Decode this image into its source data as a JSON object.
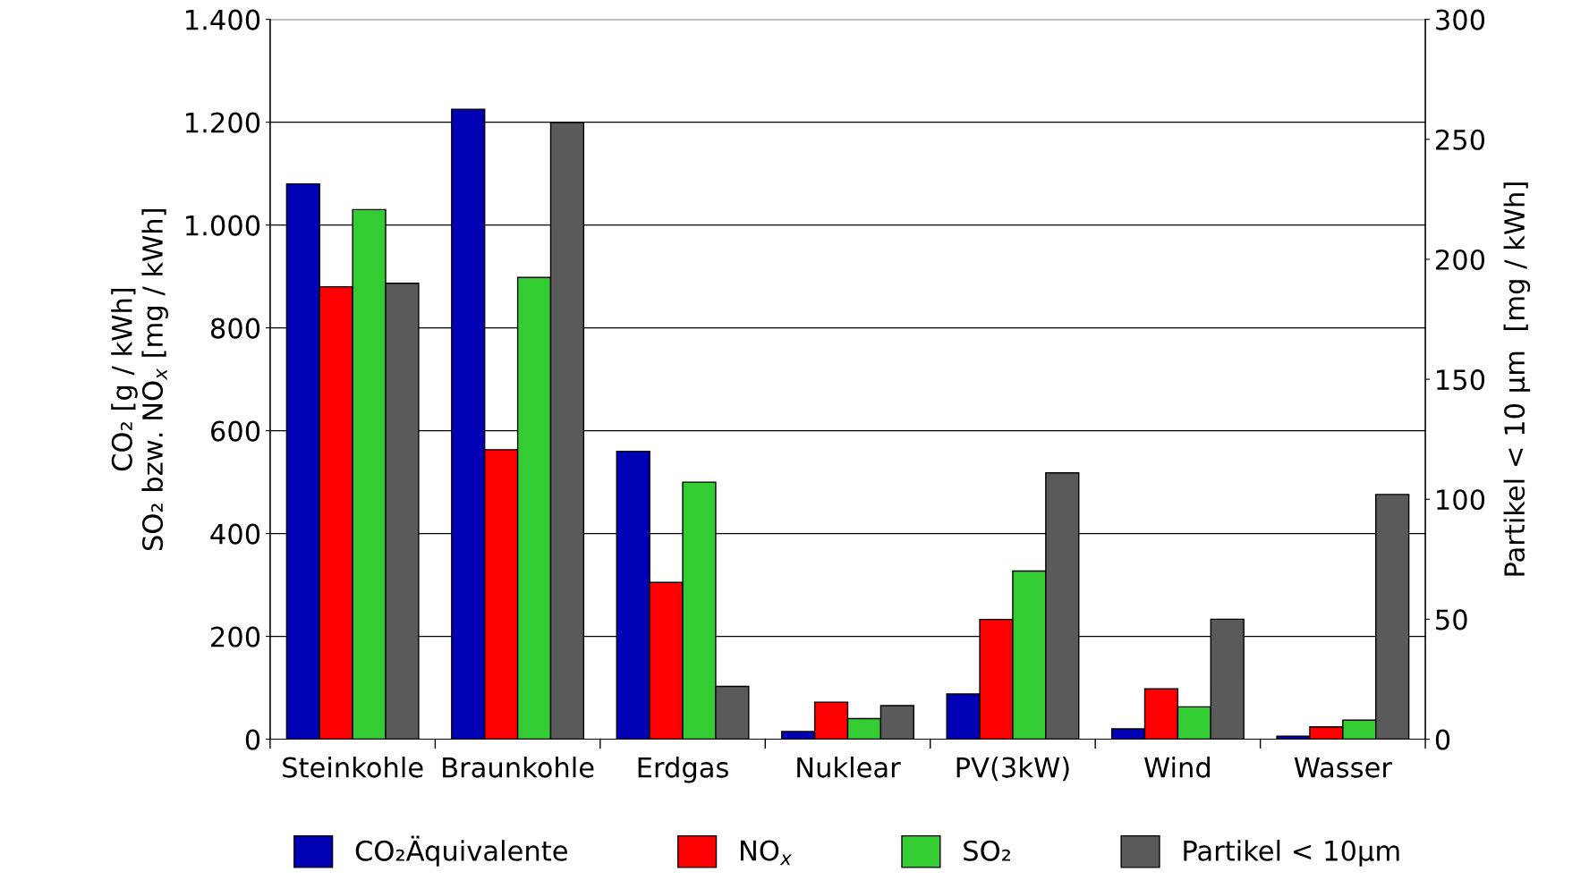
{
  "chart_data": {
    "type": "bar",
    "categories": [
      "Steinkohle",
      "Braunkohle",
      "Erdgas",
      "Nuklear",
      "PV(3kW)",
      "Wind",
      "Wasser"
    ],
    "series": [
      {
        "name": "CO₂Äquivalente",
        "color": "#0000b4",
        "values": [
          1080,
          1225,
          560,
          15,
          88,
          20,
          6
        ]
      },
      {
        "name": "NO$_{x}$",
        "color": "#ff0000",
        "values": [
          880,
          563,
          305,
          72,
          233,
          98,
          24
        ]
      },
      {
        "name": "SO₂",
        "color": "#33cc33",
        "values": [
          1030,
          898,
          500,
          40,
          327,
          63,
          37
        ]
      },
      {
        "name": "Partikel < 10µm",
        "color": "#5a5a5a",
        "axis": "y2",
        "values": [
          190,
          257,
          22,
          14,
          111,
          50,
          102
        ]
      }
    ],
    "ylabel": "CO₂ [g / kWh]\nSO₂ bzw. NO$_{x}$ [mg / kWh]",
    "y2label": "Partikel < 10 µm  [mg / kWh]",
    "ylim": [
      0,
      1400
    ],
    "yticks": [
      0,
      200,
      400,
      600,
      800,
      {
        "value": 1000,
        "label": "1.000"
      },
      {
        "value": 1200,
        "label": "1.200"
      },
      {
        "value": 1400,
        "label": "1.400"
      }
    ],
    "y2lim": [
      0,
      300
    ],
    "y2ticks": [
      0,
      50,
      100,
      150,
      200,
      250,
      300
    ],
    "grid": "y",
    "legend": "bottom"
  }
}
